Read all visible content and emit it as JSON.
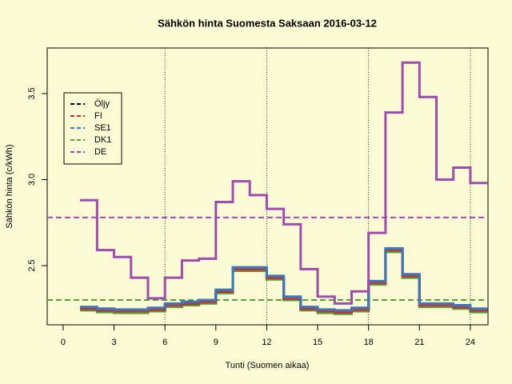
{
  "chart_data": {
    "type": "line",
    "title": "Sähkön hinta Suomesta Saksaan 2016-03-12",
    "x_label": "Tunti (Suomen aikaa)",
    "y_label": "Sähkön hinta (c/kWh)",
    "x": [
      1,
      2,
      3,
      4,
      5,
      6,
      7,
      8,
      9,
      10,
      11,
      12,
      13,
      14,
      15,
      16,
      17,
      18,
      19,
      20,
      21,
      22,
      23,
      24
    ],
    "series": [
      {
        "name": "Öljy",
        "color": "#000000",
        "values": [
          2.25,
          2.24,
          2.235,
          2.235,
          2.245,
          2.27,
          2.28,
          2.29,
          2.35,
          2.48,
          2.48,
          2.43,
          2.31,
          2.25,
          2.235,
          2.23,
          2.245,
          2.4,
          2.59,
          2.44,
          2.27,
          2.27,
          2.26,
          2.24
        ]
      },
      {
        "name": "FI",
        "color": "#d03030",
        "values": [
          2.25,
          2.24,
          2.235,
          2.235,
          2.245,
          2.27,
          2.28,
          2.29,
          2.35,
          2.48,
          2.48,
          2.43,
          2.31,
          2.25,
          2.235,
          2.23,
          2.245,
          2.4,
          2.59,
          2.44,
          2.27,
          2.27,
          2.26,
          2.24
        ]
      },
      {
        "name": "SE1",
        "color": "#3a78c0",
        "values": [
          2.26,
          2.25,
          2.245,
          2.245,
          2.255,
          2.28,
          2.29,
          2.3,
          2.36,
          2.49,
          2.49,
          2.44,
          2.32,
          2.26,
          2.245,
          2.24,
          2.255,
          2.41,
          2.6,
          2.45,
          2.28,
          2.28,
          2.27,
          2.25
        ]
      },
      {
        "name": "DK1",
        "color": "#50a03c",
        "values": [
          2.24,
          2.23,
          2.225,
          2.225,
          2.235,
          2.26,
          2.27,
          2.28,
          2.34,
          2.47,
          2.47,
          2.42,
          2.3,
          2.24,
          2.225,
          2.22,
          2.235,
          2.39,
          2.58,
          2.43,
          2.26,
          2.26,
          2.25,
          2.23
        ]
      },
      {
        "name": "DE",
        "color": "#9d4db0",
        "values": [
          2.88,
          2.59,
          2.55,
          2.43,
          2.31,
          2.43,
          2.53,
          2.54,
          2.87,
          2.99,
          2.91,
          2.83,
          2.74,
          2.48,
          2.32,
          2.28,
          2.35,
          2.69,
          3.39,
          3.68,
          3.48,
          3.0,
          3.07,
          2.98
        ]
      }
    ],
    "reference_lines": [
      {
        "value": 2.78,
        "color": "#9d4db0"
      },
      {
        "value": 2.3,
        "color": "#50a03c"
      }
    ],
    "vlines": [
      6,
      12,
      18,
      24
    ],
    "xlim": [
      -0.94,
      25.04
    ],
    "xticks": [
      0,
      3,
      6,
      9,
      12,
      15,
      18,
      21,
      24
    ],
    "ylim": [
      2.156,
      3.765
    ],
    "yticks": [
      {
        "value": 2.5,
        "label": "2.5"
      },
      {
        "value": 3.0,
        "label": "3.0"
      },
      {
        "value": 3.5,
        "label": "3.5"
      }
    ],
    "legend": "top-left"
  }
}
